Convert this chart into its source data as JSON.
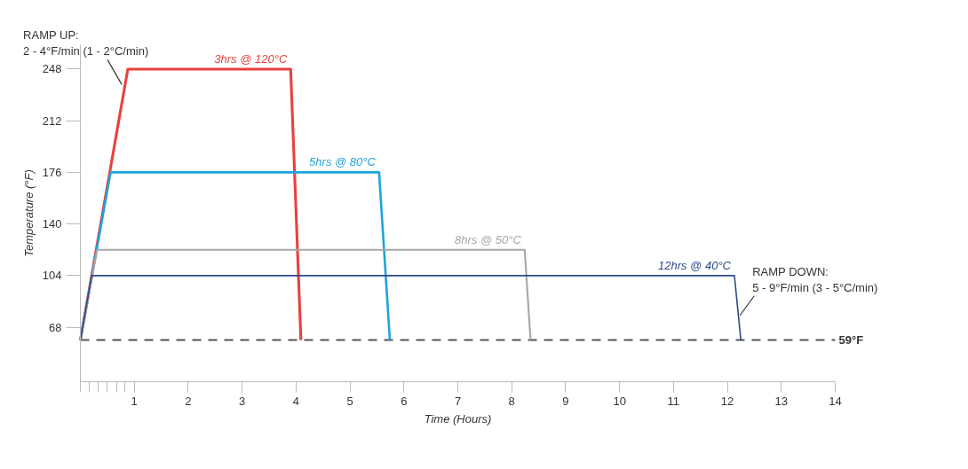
{
  "chart_data": {
    "type": "line",
    "xlabel": "Time (Hours)",
    "ylabel": "Temperature (°F)",
    "xlim": [
      0,
      14
    ],
    "ylim": [
      30,
      265
    ],
    "xticks": [
      {
        "value": 0,
        "label": null
      },
      {
        "value": 0.17,
        "label": null
      },
      {
        "value": 0.33,
        "label": null
      },
      {
        "value": 0.5,
        "label": null
      },
      {
        "value": 0.67,
        "label": null
      },
      {
        "value": 0.83,
        "label": null
      },
      1,
      2,
      3,
      4,
      5,
      6,
      7,
      8,
      9,
      10,
      11,
      12,
      13,
      14
    ],
    "yticks": [
      68,
      104,
      140,
      176,
      212,
      248
    ],
    "grid": false,
    "legend": false,
    "marker": "none",
    "line_style": "solid",
    "series": [
      {
        "name": "3hrs @ 120°C",
        "color": "#e8413c",
        "x": [
          0,
          0.88,
          3.9,
          4.09
        ],
        "values": [
          59,
          248,
          248,
          59
        ]
      },
      {
        "name": "5hrs @ 80°C",
        "color": "#1ea3dc",
        "x": [
          0,
          0.56,
          5.54,
          5.74
        ],
        "values": [
          59,
          176,
          176,
          59
        ]
      },
      {
        "name": "8hrs @ 50°C",
        "color": "#a6a6a6",
        "x": [
          0,
          0.31,
          8.24,
          8.35
        ],
        "values": [
          59,
          122,
          122,
          59
        ]
      },
      {
        "name": "12hrs @ 40°C",
        "color": "#2b4a8b",
        "x": [
          0,
          0.21,
          12.13,
          12.25
        ],
        "values": [
          59,
          104,
          104,
          59
        ]
      }
    ],
    "ref_lines": [
      {
        "axis": "y",
        "value": 59,
        "label": "59°F",
        "color": "#555555",
        "line_style": "dashed"
      }
    ],
    "annotations": [
      {
        "text": "RAMP UP:\n2 - 4°F/min (1 - 2°C/min)",
        "x": 0.8,
        "y": 236
      },
      {
        "text": "RAMP DOWN:\n5 - 9°F/min (3 - 5°C/min)",
        "x": 12.2,
        "y": 75
      }
    ]
  }
}
